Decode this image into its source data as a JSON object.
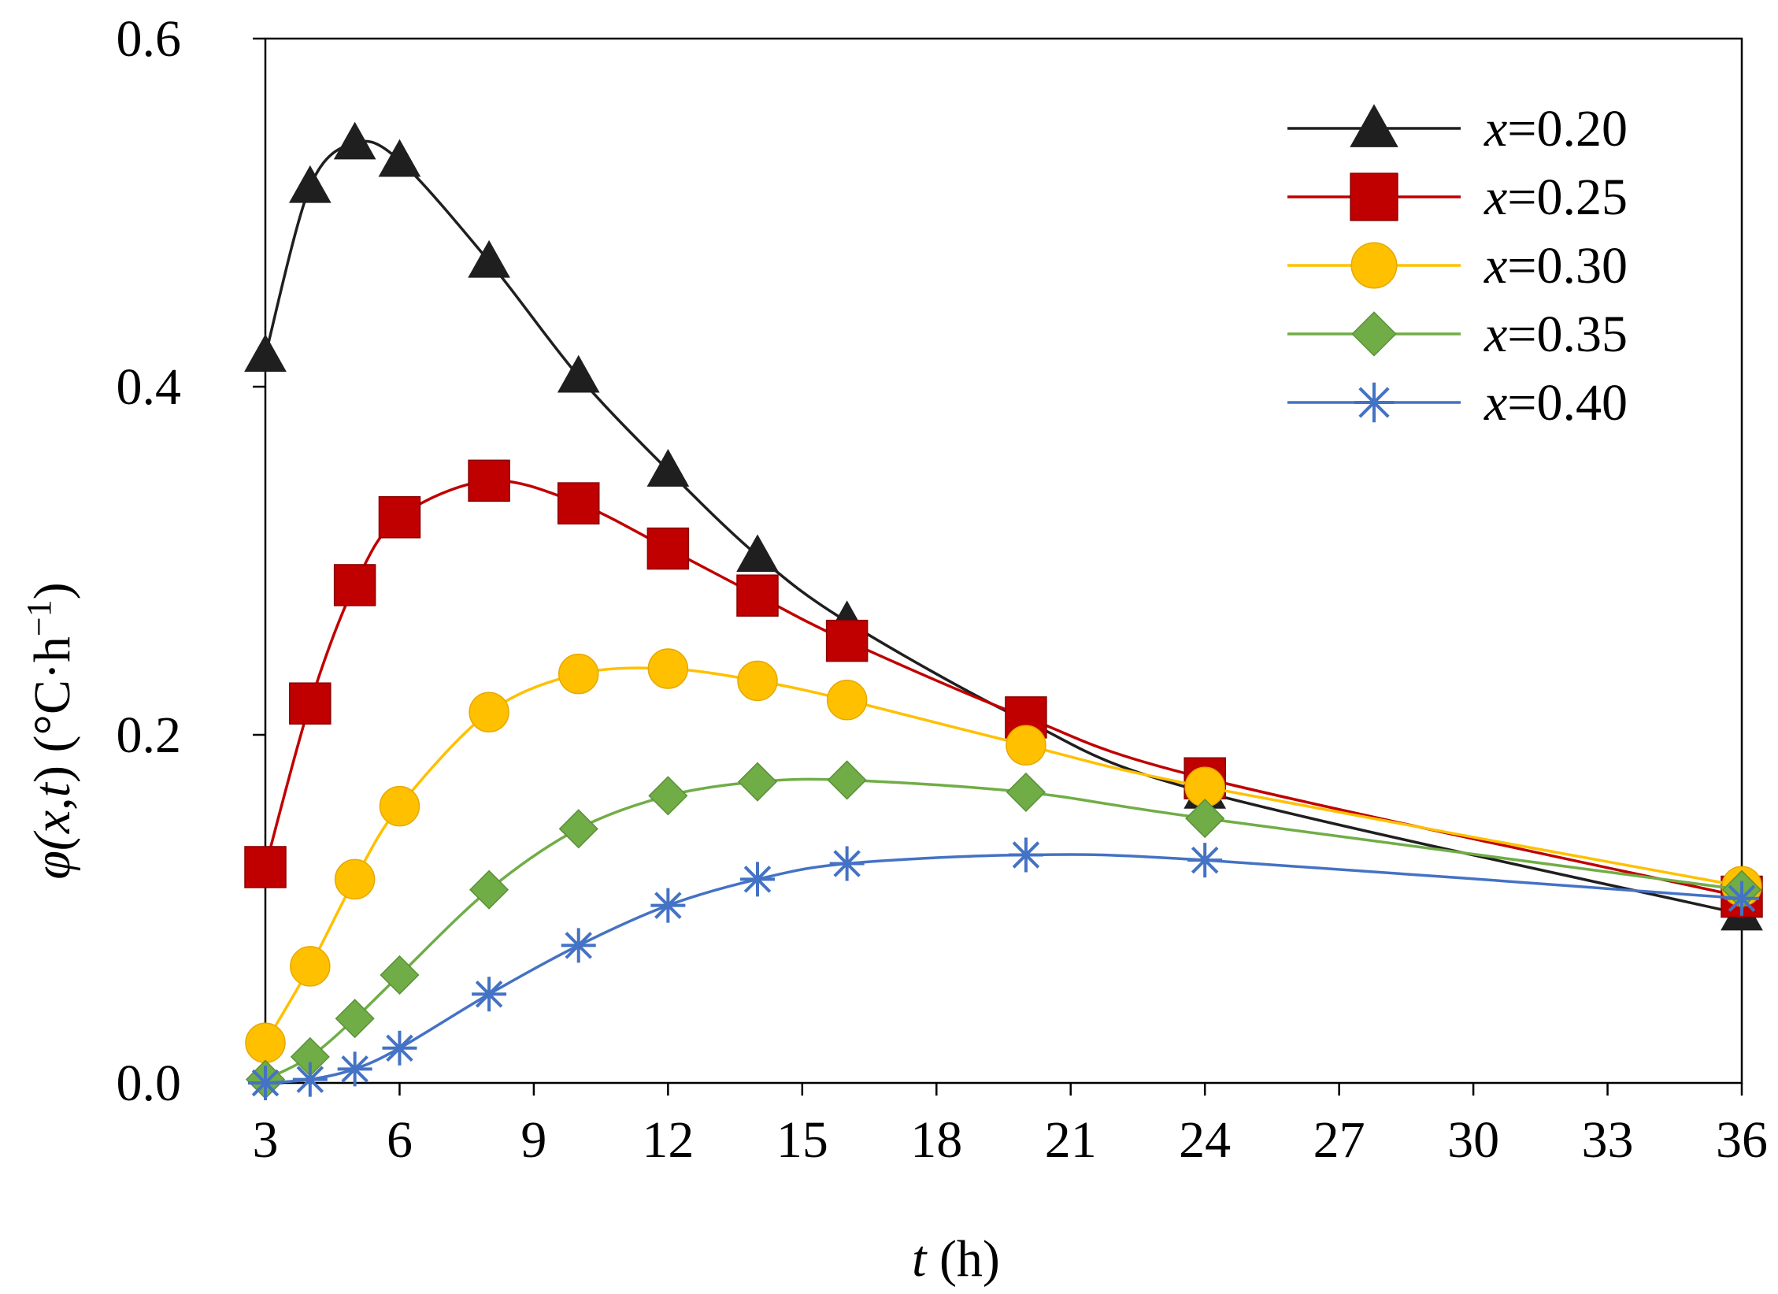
{
  "chart_data": {
    "type": "line",
    "title": "",
    "xlabel": "t (h)",
    "xlabel_var": "t",
    "xlabel_unit": " (h)",
    "ylabel": "φ(x,t) (°C·h⁻¹)",
    "ylabel_parts": {
      "phi": "φ(",
      "x": "x",
      "comma": ",",
      "t": "t",
      "close": ")",
      "unit": " (°C·h",
      "sup": "−1",
      "end": ")"
    },
    "xlim": [
      3,
      36
    ],
    "ylim": [
      0,
      0.6
    ],
    "xticks": [
      3,
      6,
      9,
      12,
      15,
      18,
      21,
      24,
      27,
      30,
      33,
      36
    ],
    "yticks": [
      0.0,
      0.2,
      0.4,
      0.6
    ],
    "ytick_labels": [
      "0.0",
      "0.2",
      "0.4",
      "0.6"
    ],
    "legend_position": "top-right",
    "grid": false,
    "x": [
      3,
      4,
      5,
      6,
      8,
      10,
      12,
      14,
      16,
      20,
      24,
      36
    ],
    "series": [
      {
        "name": "x=0.20",
        "var": "x",
        "label": "=0.20",
        "color": "#1f1f1f",
        "marker": "triangle",
        "values": [
          0.418,
          0.515,
          0.54,
          0.53,
          0.472,
          0.406,
          0.352,
          0.303,
          0.265,
          0.208,
          0.167,
          0.097
        ]
      },
      {
        "name": "x=0.25",
        "var": "x",
        "label": "=0.25",
        "color": "#c00000",
        "marker": "square",
        "values": [
          0.124,
          0.218,
          0.286,
          0.325,
          0.346,
          0.333,
          0.307,
          0.28,
          0.254,
          0.21,
          0.175,
          0.107
        ]
      },
      {
        "name": "x=0.30",
        "var": "x",
        "label": "=0.30",
        "color": "#ffc000",
        "marker": "circle",
        "values": [
          0.023,
          0.067,
          0.117,
          0.159,
          0.213,
          0.235,
          0.238,
          0.231,
          0.22,
          0.194,
          0.17,
          0.113
        ]
      },
      {
        "name": "x=0.35",
        "var": "x",
        "label": "=0.35",
        "color": "#70ad47",
        "marker": "diamond",
        "values": [
          0.002,
          0.015,
          0.037,
          0.062,
          0.111,
          0.146,
          0.165,
          0.173,
          0.174,
          0.167,
          0.152,
          0.111
        ]
      },
      {
        "name": "x=0.40",
        "var": "x",
        "label": "=0.40",
        "color": "#4472c4",
        "marker": "star",
        "values": [
          0.0,
          0.002,
          0.008,
          0.02,
          0.051,
          0.079,
          0.102,
          0.117,
          0.126,
          0.131,
          0.128,
          0.106
        ]
      }
    ]
  }
}
